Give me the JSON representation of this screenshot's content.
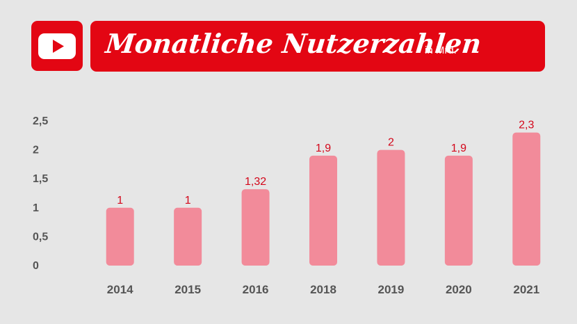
{
  "header": {
    "title": "Monatliche Nutzerzahlen",
    "subtitle": "in Mrd.",
    "logo_icon": "youtube-play-icon"
  },
  "colors": {
    "background": "#e6e6e6",
    "accent": "#e30613",
    "bar": "#f28b9a",
    "data_label": "#d3061a",
    "axis_text": "#555555"
  },
  "chart_data": {
    "type": "bar",
    "categories": [
      "2014",
      "2015",
      "2016",
      "2018",
      "2019",
      "2020",
      "2021"
    ],
    "values": [
      1,
      1,
      1.32,
      1.9,
      2,
      1.9,
      2.3
    ],
    "data_labels": [
      "1",
      "1",
      "1,32",
      "1,9",
      "2",
      "1,9",
      "2,3"
    ],
    "yticks": [
      "0",
      "0,5",
      "1",
      "1,5",
      "2",
      "2,5"
    ],
    "ytick_values": [
      0,
      0.5,
      1,
      1.5,
      2,
      2.5
    ],
    "ylim": [
      0,
      2.5
    ],
    "title": "Monatliche Nutzerzahlen",
    "subtitle": "in Mrd.",
    "grid": false,
    "legend": "none"
  }
}
